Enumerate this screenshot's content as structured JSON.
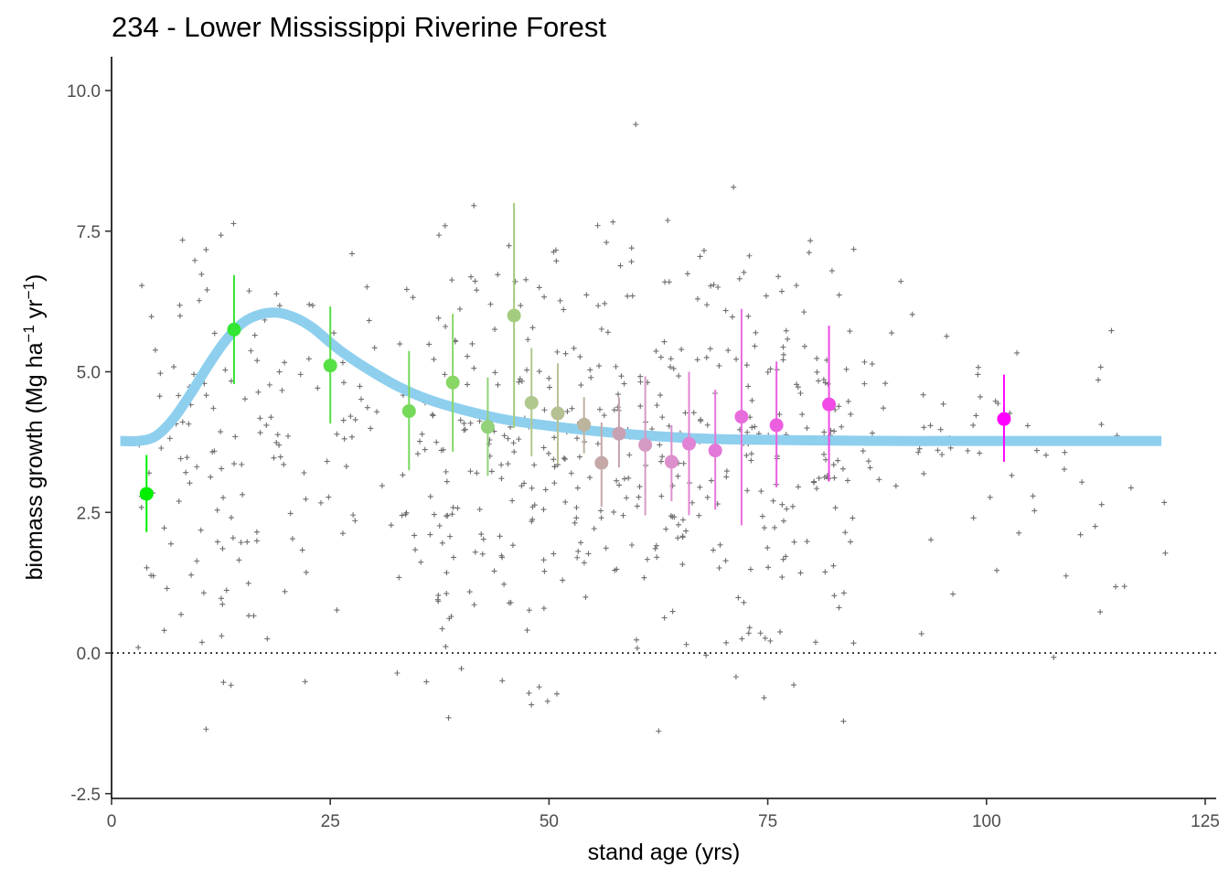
{
  "chart_data": {
    "type": "scatter",
    "title": "234 - Lower Mississippi Riverine Forest",
    "xlabel": "stand age (yrs)",
    "ylabel": {
      "main": "biomass growth (Mg ha",
      "sup1": "−1",
      "mid": " yr",
      "sup2": "−1",
      "end": ")"
    },
    "xlim": [
      0,
      125
    ],
    "ylim": [
      -2.5,
      10.5
    ],
    "x_ticks": [
      0,
      25,
      50,
      75,
      100,
      125
    ],
    "x_tick_labels": [
      "0",
      "25",
      "50",
      "75",
      "100",
      "125"
    ],
    "y_ticks": [
      -2.5,
      0,
      2.5,
      5,
      7.5,
      10
    ],
    "y_tick_labels": [
      "-2.5",
      "0.0",
      "2.5",
      "5.0",
      "7.5",
      "10.0"
    ],
    "grid": false,
    "reference_line": {
      "y": 0,
      "style": "dotted"
    },
    "fit_curve": {
      "color": "#8ecfee",
      "x": [
        1,
        3,
        5,
        7,
        9,
        11,
        13,
        15,
        17,
        19,
        21,
        23,
        25,
        27,
        30,
        33,
        36,
        40,
        45,
        50,
        55,
        60,
        65,
        70,
        75,
        80,
        90,
        100,
        110,
        120
      ],
      "y": [
        3.77,
        3.77,
        3.85,
        4.15,
        4.6,
        5.1,
        5.55,
        5.87,
        6.02,
        6.05,
        5.96,
        5.78,
        5.52,
        5.28,
        4.98,
        4.72,
        4.52,
        4.33,
        4.15,
        4.04,
        3.95,
        3.88,
        3.83,
        3.8,
        3.79,
        3.78,
        3.77,
        3.77,
        3.77,
        3.77
      ]
    },
    "binned_means": [
      {
        "x": 4,
        "y": 2.83,
        "low": 2.15,
        "high": 3.52,
        "color": "#00ee00"
      },
      {
        "x": 14,
        "y": 5.75,
        "low": 4.78,
        "high": 6.72,
        "color": "#33e633"
      },
      {
        "x": 25,
        "y": 5.11,
        "low": 4.08,
        "high": 6.16,
        "color": "#55e044"
      },
      {
        "x": 34,
        "y": 4.3,
        "low": 3.25,
        "high": 5.37,
        "color": "#77d95a"
      },
      {
        "x": 39,
        "y": 4.81,
        "low": 3.58,
        "high": 6.03,
        "color": "#88d666"
      },
      {
        "x": 43,
        "y": 4.02,
        "low": 3.15,
        "high": 4.9,
        "color": "#92d27a"
      },
      {
        "x": 46,
        "y": 6.0,
        "low": 4.0,
        "high": 8.0,
        "color": "#a3cc7f"
      },
      {
        "x": 48,
        "y": 4.45,
        "low": 3.5,
        "high": 5.42,
        "color": "#b0c88e"
      },
      {
        "x": 51,
        "y": 4.26,
        "low": 3.37,
        "high": 5.15,
        "color": "#b6c193"
      },
      {
        "x": 54,
        "y": 4.06,
        "low": 3.55,
        "high": 4.55,
        "color": "#bdb49e"
      },
      {
        "x": 56,
        "y": 3.38,
        "low": 2.6,
        "high": 4.1,
        "color": "#c5a9a8"
      },
      {
        "x": 58,
        "y": 3.9,
        "low": 3.3,
        "high": 4.55,
        "color": "#c8a2b2"
      },
      {
        "x": 61,
        "y": 3.7,
        "low": 2.45,
        "high": 4.92,
        "color": "#d59ac4"
      },
      {
        "x": 64,
        "y": 3.4,
        "low": 2.7,
        "high": 4.05,
        "color": "#dc8fcc"
      },
      {
        "x": 66,
        "y": 3.72,
        "low": 2.45,
        "high": 5.0,
        "color": "#e184d4"
      },
      {
        "x": 69,
        "y": 3.6,
        "low": 2.55,
        "high": 4.68,
        "color": "#e478d8"
      },
      {
        "x": 72,
        "y": 4.2,
        "low": 2.27,
        "high": 6.12,
        "color": "#e86ddc"
      },
      {
        "x": 76,
        "y": 4.05,
        "low": 2.95,
        "high": 5.18,
        "color": "#ec5ee0"
      },
      {
        "x": 82,
        "y": 4.42,
        "low": 3.05,
        "high": 5.82,
        "color": "#f14ae6"
      },
      {
        "x": 102,
        "y": 4.16,
        "low": 3.4,
        "high": 4.95,
        "color": "#ff00ff"
      }
    ],
    "raw_points": {
      "marker": "+",
      "color": "#6e6e6e",
      "count": 700,
      "seed": 234
    }
  }
}
